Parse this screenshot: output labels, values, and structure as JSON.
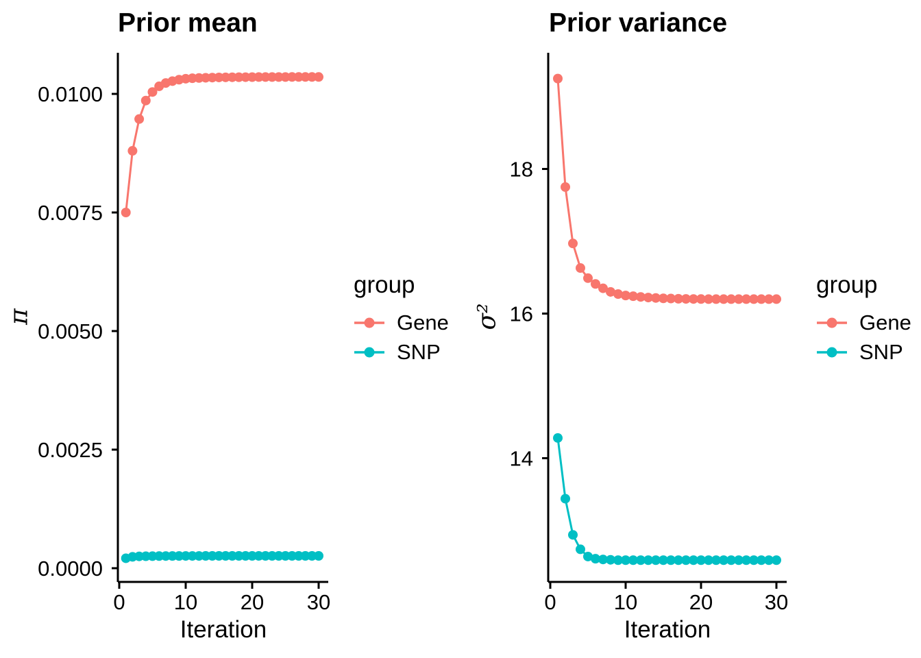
{
  "figure": {
    "background": "#FFFFFF"
  },
  "legend": {
    "title": "group",
    "items": [
      {
        "label": "Gene",
        "color": "#F8766D"
      },
      {
        "label": "SNP",
        "color": "#00BFC4"
      }
    ]
  },
  "chart_data": [
    {
      "type": "line",
      "title": "Prior mean",
      "xlabel": "Iteration",
      "ylabel": "π",
      "grid": false,
      "legend_position": "right",
      "xlim": [
        0,
        31.5
      ],
      "ylim": [
        -0.0003,
        0.0109
      ],
      "x_ticks": [
        0,
        10,
        20,
        30
      ],
      "y_ticks": [
        0.0,
        0.0025,
        0.005,
        0.0075,
        0.01
      ],
      "y_tick_labels": [
        "0.0000",
        "0.0025",
        "0.0050",
        "0.0075",
        "0.0100"
      ],
      "x": [
        1,
        2,
        3,
        4,
        5,
        6,
        7,
        8,
        9,
        10,
        11,
        12,
        13,
        14,
        15,
        16,
        17,
        18,
        19,
        20,
        21,
        22,
        23,
        24,
        25,
        26,
        27,
        28,
        29,
        30
      ],
      "series": [
        {
          "name": "Gene",
          "color": "#F8766D",
          "values": [
            0.0075,
            0.0088,
            0.00947,
            0.00986,
            0.01004,
            0.01016,
            0.01023,
            0.01027,
            0.0103,
            0.01032,
            0.01033,
            0.010336,
            0.01034,
            0.010344,
            0.010347,
            0.010349,
            0.010351,
            0.010352,
            0.010353,
            0.010354,
            0.010355,
            0.010355,
            0.010356,
            0.010356,
            0.010356,
            0.010357,
            0.010357,
            0.010357,
            0.010357,
            0.010357
          ]
        },
        {
          "name": "SNP",
          "color": "#00BFC4",
          "values": [
            0.00021,
            0.00024,
            0.00025,
            0.000252,
            0.000254,
            0.000256,
            0.000257,
            0.000258,
            0.000258,
            0.000259,
            0.000259,
            0.000259,
            0.00026,
            0.00026,
            0.00026,
            0.00026,
            0.00026,
            0.00026,
            0.00026,
            0.00026,
            0.00026,
            0.00026,
            0.00026,
            0.00026,
            0.00026,
            0.00026,
            0.00026,
            0.00026,
            0.00026,
            0.00026
          ]
        }
      ]
    },
    {
      "type": "line",
      "title": "Prior variance",
      "xlabel": "Iteration",
      "ylabel": "σ²",
      "grid": false,
      "legend_position": "right",
      "xlim": [
        0,
        31.5
      ],
      "ylim": [
        12.2,
        19.6
      ],
      "x_ticks": [
        0,
        10,
        20,
        30
      ],
      "y_ticks": [
        14,
        16,
        18
      ],
      "y_tick_labels": [
        "14",
        "16",
        "18"
      ],
      "x": [
        1,
        2,
        3,
        4,
        5,
        6,
        7,
        8,
        9,
        10,
        11,
        12,
        13,
        14,
        15,
        16,
        17,
        18,
        19,
        20,
        21,
        22,
        23,
        24,
        25,
        26,
        27,
        28,
        29,
        30
      ],
      "series": [
        {
          "name": "Gene",
          "color": "#F8766D",
          "values": [
            19.25,
            17.75,
            16.97,
            16.63,
            16.49,
            16.41,
            16.35,
            16.3,
            16.27,
            16.25,
            16.24,
            16.23,
            16.222,
            16.216,
            16.211,
            16.208,
            16.205,
            16.203,
            16.202,
            16.201,
            16.2,
            16.2,
            16.2,
            16.2,
            16.2,
            16.2,
            16.2,
            16.2,
            16.2,
            16.2
          ]
        },
        {
          "name": "SNP",
          "color": "#00BFC4",
          "values": [
            14.28,
            13.44,
            12.94,
            12.74,
            12.64,
            12.61,
            12.6,
            12.595,
            12.59,
            12.59,
            12.59,
            12.59,
            12.59,
            12.59,
            12.59,
            12.59,
            12.59,
            12.59,
            12.59,
            12.59,
            12.59,
            12.59,
            12.59,
            12.59,
            12.59,
            12.59,
            12.59,
            12.59,
            12.59,
            12.59
          ]
        }
      ]
    }
  ]
}
